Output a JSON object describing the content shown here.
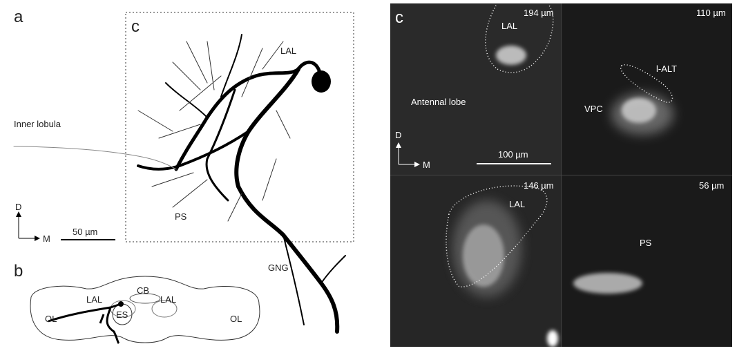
{
  "panel_a": {
    "label": "a",
    "inset_label": "c",
    "regions": {
      "inner_lobula": "Inner lobula",
      "lal": "LAL",
      "ps": "PS",
      "gng": "GNG"
    },
    "axes": {
      "dorsal": "D",
      "medial": "M"
    },
    "scale_bar": "50 µm"
  },
  "panel_b": {
    "label": "b",
    "regions": {
      "cb": "CB",
      "lal_left": "LAL",
      "lal_right": "LAL",
      "es": "ES",
      "ol_left": "OL",
      "ol_right": "OL"
    }
  },
  "panel_c": {
    "label": "c",
    "axes": {
      "dorsal": "D",
      "medial": "M"
    },
    "scale_bar": "100 µm",
    "quadrants": [
      {
        "depth": "194 µm",
        "labels": [
          "LAL",
          "Antennal lobe"
        ]
      },
      {
        "depth": "110 µm",
        "labels": [
          "l-ALT",
          "VPC"
        ]
      },
      {
        "depth": "146 µm",
        "labels": [
          "LAL"
        ]
      },
      {
        "depth": "56 µm",
        "labels": [
          "PS"
        ]
      }
    ]
  }
}
